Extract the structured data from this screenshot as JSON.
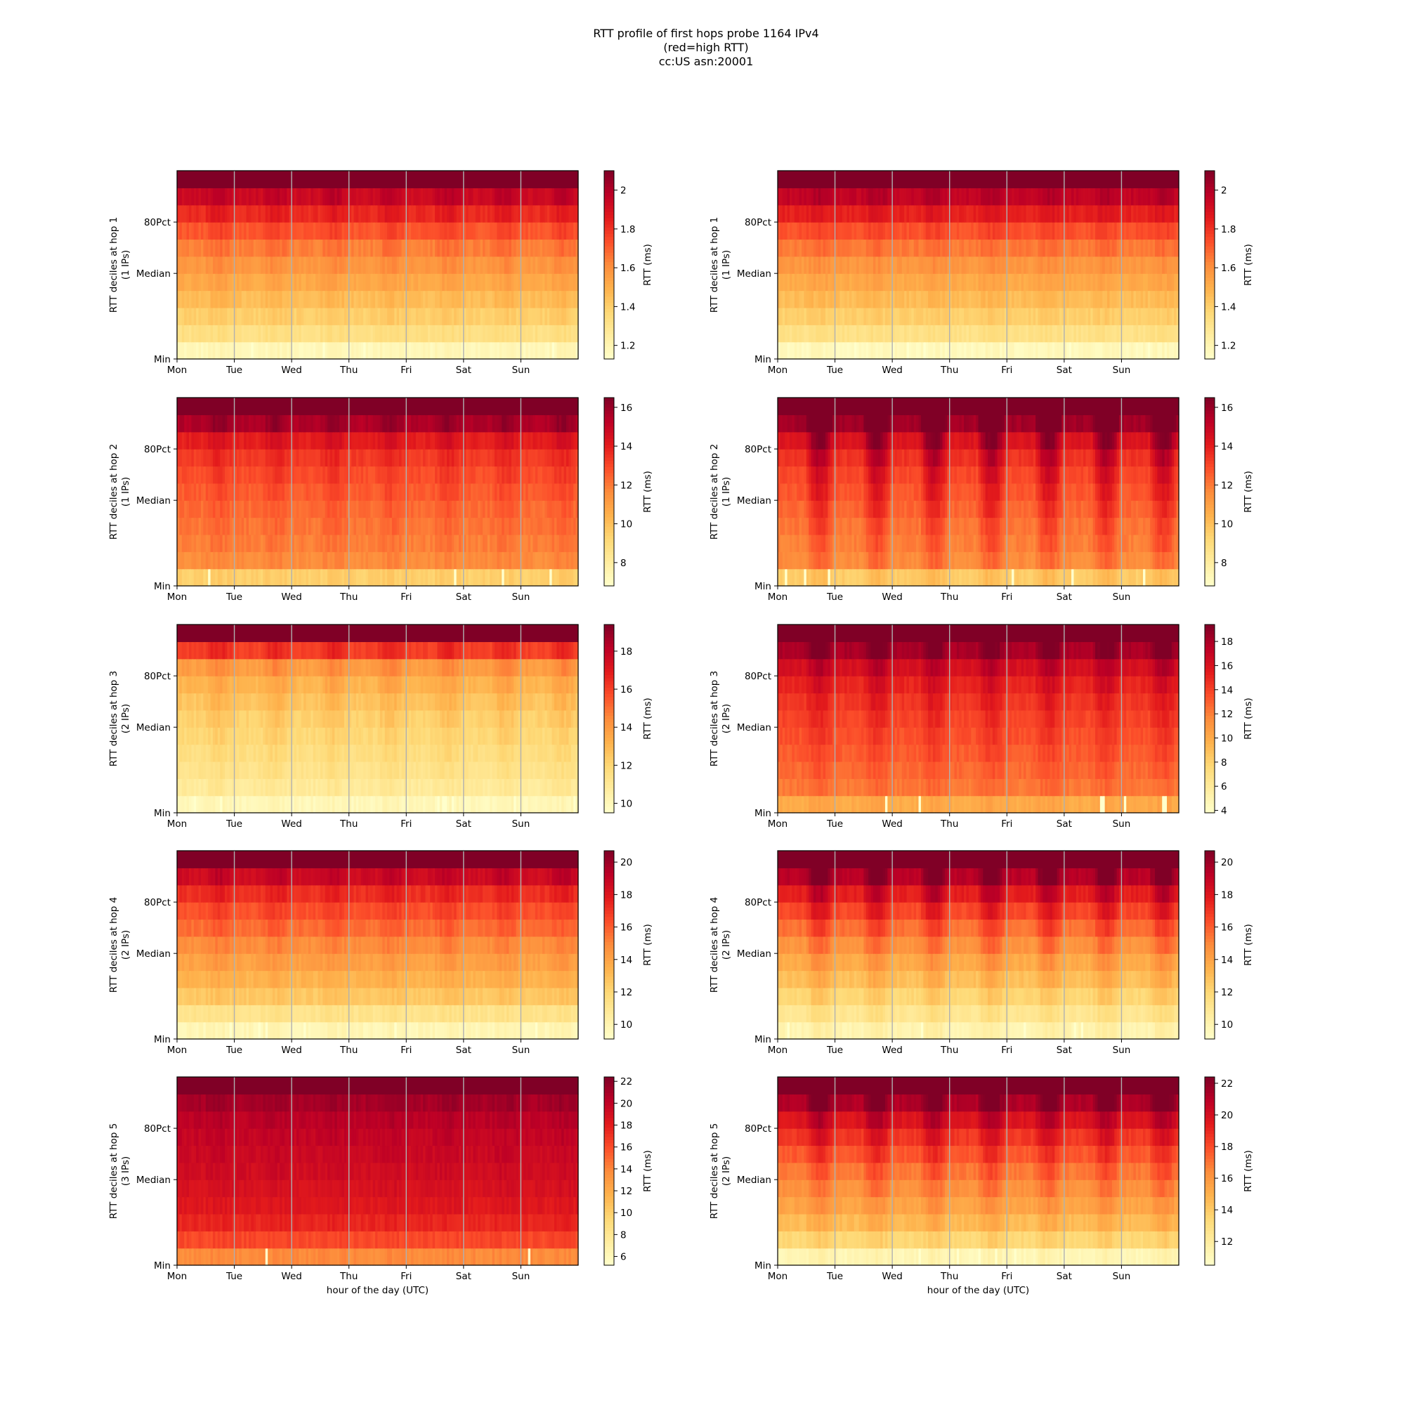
{
  "figure": {
    "title_lines": [
      "RTT profile of first hops probe 1164 IPv4",
      "(red=high RTT)",
      "cc:US asn:20001"
    ]
  },
  "colormap": {
    "name": "YlOrRd",
    "stops": [
      "#ffffcc",
      "#ffeda0",
      "#fed976",
      "#feb24c",
      "#fd8d3c",
      "#fc4e2a",
      "#e31a1c",
      "#bd0026",
      "#800026"
    ]
  },
  "chart_data": [
    {
      "type": "heatmap",
      "panel": "hop1-left",
      "ylabel": "RTT deciles at hop 1",
      "ylabel_sub": "(1 IPs)",
      "y_ticks": [
        "Min",
        "Median",
        "80Pct"
      ],
      "x_ticks": [
        "Mon",
        "Tue",
        "Wed",
        "Thu",
        "Fri",
        "Sat",
        "Sun"
      ],
      "xlabel": "",
      "colorbar_label": "RTT (ms)",
      "colorbar_ticks": [
        1.2,
        1.4,
        1.6,
        1.8,
        2.0
      ],
      "vmin": 1.13,
      "vmax": 2.1,
      "decile_profile": [
        1.18,
        1.33,
        1.4,
        1.46,
        1.52,
        1.58,
        1.64,
        1.72,
        1.82,
        1.93,
        2.15
      ],
      "diurnal_amplitude": 0.05
    },
    {
      "type": "heatmap",
      "panel": "hop1-right",
      "ylabel": "RTT deciles at hop 1",
      "ylabel_sub": "(1 IPs)",
      "y_ticks": [
        "Min",
        "Median",
        "80Pct"
      ],
      "x_ticks": [
        "Mon",
        "Tue",
        "Wed",
        "Thu",
        "Fri",
        "Sat",
        "Sun"
      ],
      "xlabel": "",
      "colorbar_label": "RTT (ms)",
      "colorbar_ticks": [
        1.2,
        1.4,
        1.6,
        1.8,
        2.0
      ],
      "vmin": 1.13,
      "vmax": 2.1,
      "decile_profile": [
        1.17,
        1.32,
        1.4,
        1.46,
        1.52,
        1.58,
        1.65,
        1.73,
        1.84,
        1.96,
        2.15
      ],
      "diurnal_amplitude": 0.04
    },
    {
      "type": "heatmap",
      "panel": "hop2-left",
      "ylabel": "RTT deciles at hop 2",
      "ylabel_sub": "(1 IPs)",
      "y_ticks": [
        "Min",
        "Median",
        "80Pct"
      ],
      "x_ticks": [
        "Mon",
        "Tue",
        "Wed",
        "Thu",
        "Fri",
        "Sat",
        "Sun"
      ],
      "xlabel": "",
      "colorbar_label": "RTT (ms)",
      "colorbar_ticks": [
        8,
        10,
        12,
        14,
        16
      ],
      "vmin": 6.8,
      "vmax": 16.5,
      "decile_profile": [
        9.5,
        11.6,
        11.9,
        12.1,
        12.3,
        12.6,
        12.9,
        13.3,
        14.0,
        15.5,
        17.5
      ],
      "diurnal_amplitude": 0.6
    },
    {
      "type": "heatmap",
      "panel": "hop2-right",
      "ylabel": "RTT deciles at hop 2",
      "ylabel_sub": "(1 IPs)",
      "y_ticks": [
        "Min",
        "Median",
        "80Pct"
      ],
      "x_ticks": [
        "Mon",
        "Tue",
        "Wed",
        "Thu",
        "Fri",
        "Sat",
        "Sun"
      ],
      "xlabel": "",
      "colorbar_label": "RTT (ms)",
      "colorbar_ticks": [
        8,
        10,
        12,
        14,
        16
      ],
      "vmin": 6.8,
      "vmax": 16.5,
      "decile_profile": [
        9.6,
        11.6,
        11.9,
        12.1,
        12.4,
        12.7,
        13.0,
        13.5,
        14.3,
        15.8,
        17.5
      ],
      "diurnal_amplitude": 2.2
    },
    {
      "type": "heatmap",
      "panel": "hop3-left",
      "ylabel": "RTT deciles at hop 3",
      "ylabel_sub": "(2 IPs)",
      "y_ticks": [
        "Min",
        "Median",
        "80Pct"
      ],
      "x_ticks": [
        "Mon",
        "Tue",
        "Wed",
        "Thu",
        "Fri",
        "Sat",
        "Sun"
      ],
      "xlabel": "",
      "colorbar_label": "RTT (ms)",
      "colorbar_ticks": [
        10,
        12,
        14,
        16,
        18
      ],
      "vmin": 9.5,
      "vmax": 19.4,
      "decile_profile": [
        10.0,
        10.9,
        11.3,
        11.6,
        11.9,
        12.2,
        12.6,
        13.1,
        13.9,
        16.0,
        20.0
      ],
      "diurnal_amplitude": 0.7
    },
    {
      "type": "heatmap",
      "panel": "hop3-right",
      "ylabel": "RTT deciles at hop 3",
      "ylabel_sub": "(2 IPs)",
      "y_ticks": [
        "Min",
        "Median",
        "80Pct"
      ],
      "x_ticks": [
        "Mon",
        "Tue",
        "Wed",
        "Thu",
        "Fri",
        "Sat",
        "Sun"
      ],
      "xlabel": "",
      "colorbar_label": "RTT (ms)",
      "colorbar_ticks": [
        4,
        6,
        8,
        10,
        12,
        14,
        16,
        18
      ],
      "vmin": 3.8,
      "vmax": 19.4,
      "decile_profile": [
        10.0,
        12.2,
        12.7,
        13.1,
        13.5,
        13.9,
        14.4,
        15.1,
        16.2,
        18.0,
        20.0
      ],
      "diurnal_amplitude": 1.6
    },
    {
      "type": "heatmap",
      "panel": "hop4-left",
      "ylabel": "RTT deciles at hop 4",
      "ylabel_sub": "(2 IPs)",
      "y_ticks": [
        "Min",
        "Median",
        "80Pct"
      ],
      "x_ticks": [
        "Mon",
        "Tue",
        "Wed",
        "Thu",
        "Fri",
        "Sat",
        "Sun"
      ],
      "xlabel": "",
      "colorbar_label": "RTT (ms)",
      "colorbar_ticks": [
        10,
        12,
        14,
        16,
        18,
        20
      ],
      "vmin": 9.1,
      "vmax": 20.7,
      "decile_profile": [
        9.8,
        11.2,
        12.6,
        13.4,
        14.1,
        14.8,
        15.6,
        16.3,
        17.2,
        18.6,
        21.5
      ],
      "diurnal_amplitude": 0.6
    },
    {
      "type": "heatmap",
      "panel": "hop4-right",
      "ylabel": "RTT deciles at hop 4",
      "ylabel_sub": "(2 IPs)",
      "y_ticks": [
        "Min",
        "Median",
        "80Pct"
      ],
      "x_ticks": [
        "Mon",
        "Tue",
        "Wed",
        "Thu",
        "Fri",
        "Sat",
        "Sun"
      ],
      "xlabel": "",
      "colorbar_label": "RTT (ms)",
      "colorbar_ticks": [
        10,
        12,
        14,
        16,
        18,
        20
      ],
      "vmin": 9.1,
      "vmax": 20.7,
      "decile_profile": [
        10.0,
        11.0,
        12.0,
        12.9,
        13.7,
        14.6,
        15.5,
        16.5,
        17.7,
        19.3,
        21.5
      ],
      "diurnal_amplitude": 1.8
    },
    {
      "type": "heatmap",
      "panel": "hop5-left",
      "ylabel": "RTT deciles at hop 5",
      "ylabel_sub": "(3 IPs)",
      "y_ticks": [
        "Min",
        "Median",
        "80Pct"
      ],
      "x_ticks": [
        "Mon",
        "Tue",
        "Wed",
        "Thu",
        "Fri",
        "Sat",
        "Sun"
      ],
      "xlabel": "hour of the day (UTC)",
      "colorbar_label": "RTT (ms)",
      "colorbar_ticks": [
        6,
        8,
        10,
        12,
        14,
        16,
        18,
        20,
        22
      ],
      "vmin": 5.2,
      "vmax": 22.4,
      "decile_profile": [
        13.8,
        16.2,
        17.6,
        18.3,
        18.8,
        19.2,
        19.5,
        19.8,
        20.2,
        21.0,
        23.0
      ],
      "diurnal_amplitude": 0.4
    },
    {
      "type": "heatmap",
      "panel": "hop5-right",
      "ylabel": "RTT deciles at hop 5",
      "ylabel_sub": "(2 IPs)",
      "y_ticks": [
        "Min",
        "Median",
        "80Pct"
      ],
      "x_ticks": [
        "Mon",
        "Tue",
        "Wed",
        "Thu",
        "Fri",
        "Sat",
        "Sun"
      ],
      "xlabel": "hour of the day (UTC)",
      "colorbar_label": "RTT (ms)",
      "colorbar_ticks": [
        12,
        14,
        16,
        18,
        20,
        22
      ],
      "vmin": 10.5,
      "vmax": 22.4,
      "decile_profile": [
        11.2,
        13.4,
        14.6,
        15.5,
        16.2,
        16.9,
        17.7,
        18.6,
        19.7,
        21.2,
        23.0
      ],
      "diurnal_amplitude": 1.6
    }
  ]
}
